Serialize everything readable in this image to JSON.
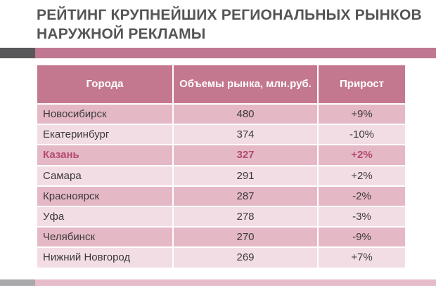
{
  "title": "РЕЙТИНГ КРУПНЕЙШИХ РЕГИОНАЛЬНЫХ РЫНКОВ НАРУЖНОЙ РЕКЛАМЫ",
  "colors": {
    "header_bg": "#c4788f",
    "row_dark": "#e5b8c6",
    "row_light": "#f3dde4",
    "highlight_text": "#b34a70"
  },
  "table": {
    "headers": [
      "Города",
      "Объемы рынка, млн.руб.",
      "Прирост"
    ],
    "rows": [
      {
        "city": "Новосибирск",
        "volume": "480",
        "growth": "+9%"
      },
      {
        "city": "Екатеринбург",
        "volume": "374",
        "growth": "-10%"
      },
      {
        "city": "Казань",
        "volume": "327",
        "growth": "+2%",
        "highlighted": true
      },
      {
        "city": "Самара",
        "volume": "291",
        "growth": "+2%"
      },
      {
        "city": "Красноярск",
        "volume": "287",
        "growth": "-2%"
      },
      {
        "city": "Уфа",
        "volume": "278",
        "growth": "-3%"
      },
      {
        "city": "Челябинск",
        "volume": "270",
        "growth": "-9%"
      },
      {
        "city": "Нижний Новгород",
        "volume": "269",
        "growth": "+7%"
      }
    ]
  }
}
